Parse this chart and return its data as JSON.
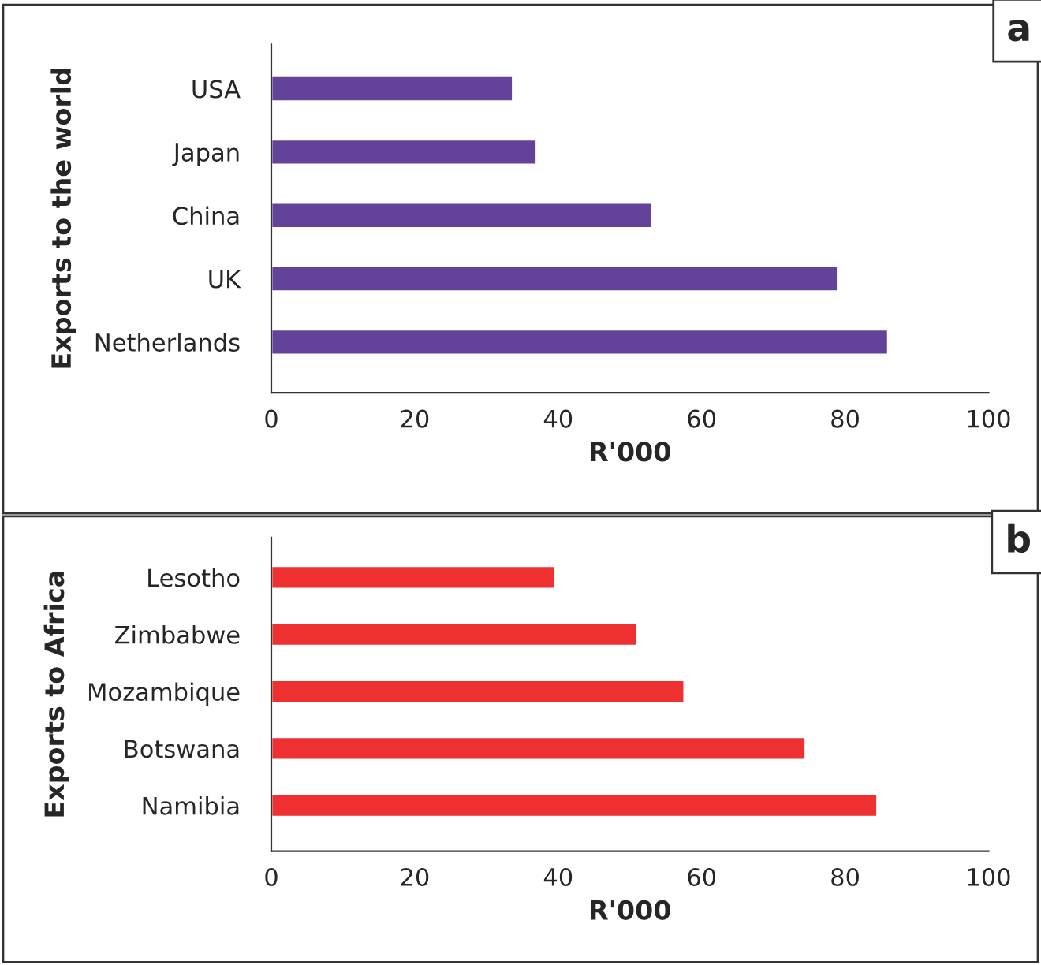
{
  "chart_data": [
    {
      "type": "bar",
      "orientation": "horizontal",
      "ylabel": "Exports to the world",
      "xlabel": "R'000",
      "annotations": [
        "a"
      ],
      "categories": [
        "USA",
        "Japan",
        "China",
        "UK",
        "Netherlands"
      ],
      "series": [
        {
          "color": "#63439a",
          "values": [
            33.7,
            37.0,
            53.1,
            79.0,
            86.0
          ]
        }
      ],
      "xlim": [
        0,
        100
      ],
      "xticks": [
        0,
        20,
        40,
        60,
        80,
        100
      ],
      "grid": false,
      "legend": false
    },
    {
      "type": "bar",
      "orientation": "horizontal",
      "ylabel": "Exports to Africa",
      "xlabel": "R'000",
      "annotations": [
        "b"
      ],
      "categories": [
        "Lesotho",
        "Zimbabwe",
        "Mozambique",
        "Botswana",
        "Namibia"
      ],
      "series": [
        {
          "color": "#ee3030",
          "values": [
            39.6,
            51.0,
            57.6,
            74.5,
            84.5
          ]
        }
      ],
      "xlim": [
        0,
        100
      ],
      "xticks": [
        0,
        20,
        40,
        60,
        80,
        100
      ],
      "grid": false,
      "legend": false
    }
  ]
}
